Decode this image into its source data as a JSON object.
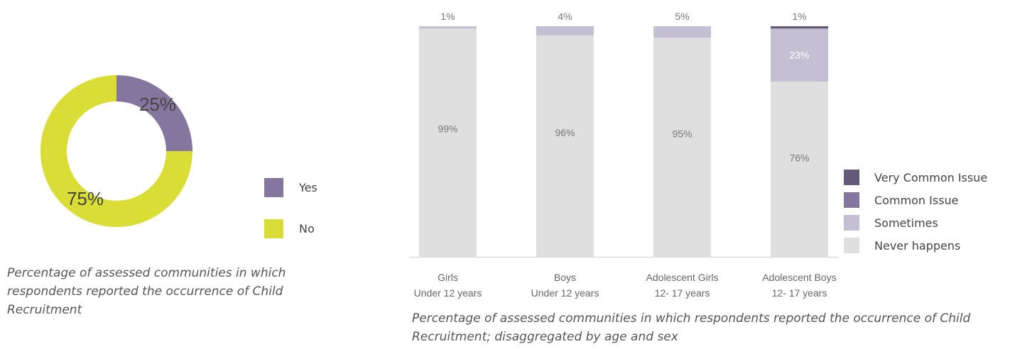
{
  "chart_data": [
    {
      "type": "pie",
      "variant": "donut",
      "slices": [
        {
          "label": "Yes",
          "value": 25,
          "value_label": "25%",
          "color": "#84769f"
        },
        {
          "label": "No",
          "value": 75,
          "value_label": "75%",
          "color": "#d9dd35"
        }
      ],
      "legend_position": "right",
      "caption": "Percentage of assessed communities in which respondents reported the occurrence of Child Recruitment"
    },
    {
      "type": "bar",
      "variant": "stacked-100",
      "categories": [
        {
          "line1": "Girls",
          "line2": "Under 12 years"
        },
        {
          "line1": "Boys",
          "line2": "Under 12 years"
        },
        {
          "line1": "Adolescent Girls",
          "line2": "12- 17 years"
        },
        {
          "line1": "Adolescent Boys",
          "line2": "12- 17 years"
        }
      ],
      "series": [
        {
          "name": "Never happens",
          "color": "#e0dfdf",
          "values": [
            99,
            96,
            95,
            76
          ],
          "labels": [
            "99%",
            "96%",
            "95%",
            "76%"
          ]
        },
        {
          "name": "Sometimes",
          "color": "#c5bfd3",
          "values": [
            1,
            4,
            5,
            23
          ],
          "labels": [
            "1%",
            "4%",
            "5%",
            "23%"
          ]
        },
        {
          "name": "Common Issue",
          "color": "#84769f",
          "values": [
            0,
            0,
            0,
            0
          ],
          "labels": [
            "",
            "",
            "",
            ""
          ]
        },
        {
          "name": "Very Common Issue",
          "color": "#625a78",
          "values": [
            0,
            0,
            0,
            1
          ],
          "labels": [
            "",
            "",
            "",
            "1%"
          ]
        }
      ],
      "legend_order": [
        "Very Common Issue",
        "Common Issue",
        "Sometimes",
        "Never happens"
      ],
      "ylim": [
        0,
        100
      ],
      "legend_position": "right",
      "caption": "Percentage of assessed communities in which respondents reported the occurrence of Child Recruitment; disaggregated by age and sex"
    }
  ]
}
